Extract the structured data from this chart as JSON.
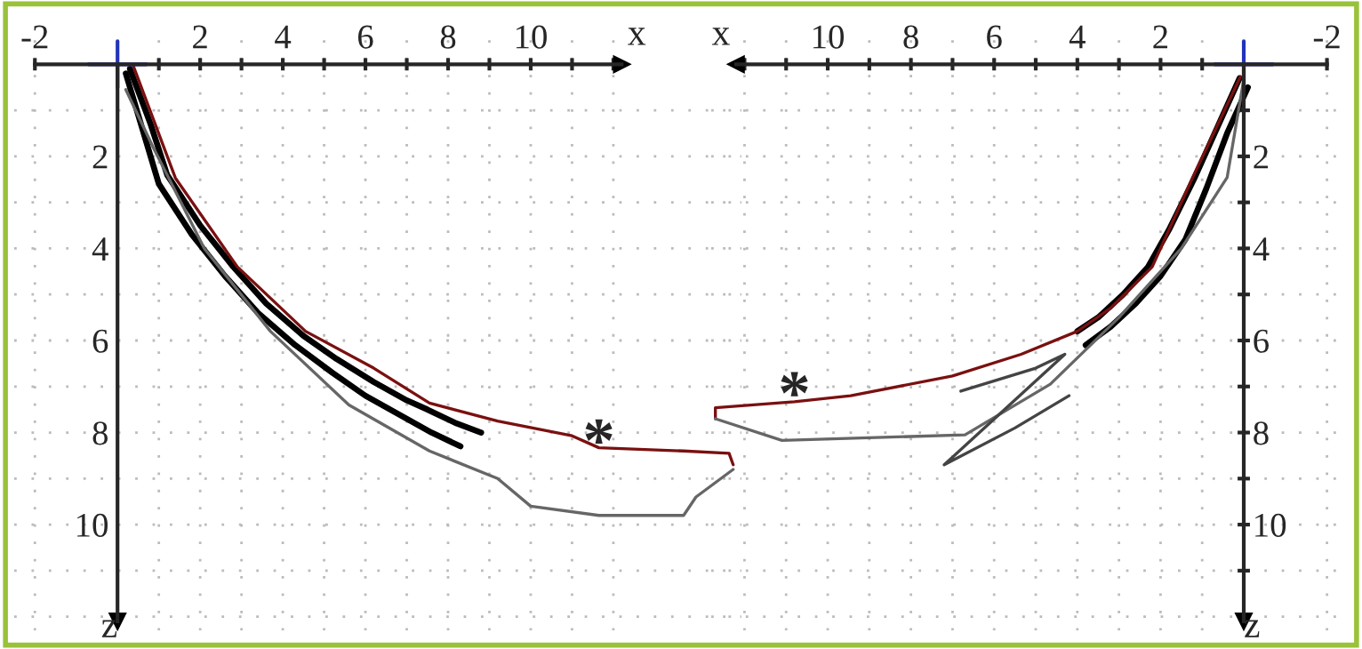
{
  "chart_data": [
    {
      "type": "line",
      "xlabel": "x",
      "ylabel": "z",
      "xlim": [
        -2.5,
        15.1
      ],
      "ylim": [
        12.3,
        -0.6
      ],
      "xticks": [
        -2,
        {
          "value": 1,
          "label": null
        },
        2,
        {
          "value": 3,
          "label": null
        },
        4,
        {
          "value": 5,
          "label": null
        },
        6,
        {
          "value": 7,
          "label": null
        },
        8,
        {
          "value": 9,
          "label": null
        },
        10,
        {
          "value": 11,
          "label": null
        },
        {
          "value": 12,
          "label": null
        }
      ],
      "yticks": [
        {
          "value": 1,
          "label": null
        },
        2,
        {
          "value": 3,
          "label": null
        },
        4,
        {
          "value": 5,
          "label": null
        },
        6,
        {
          "value": 7,
          "label": null
        },
        8,
        {
          "value": 9,
          "label": null
        },
        10,
        {
          "value": 11,
          "label": null
        },
        {
          "value": 12,
          "label": null
        }
      ],
      "grid": true,
      "line_style": "solid",
      "marker": "none",
      "annotations": [
        {
          "text": "*",
          "x": 11.65,
          "y": 8.3
        }
      ],
      "series": [
        {
          "color": "#000000",
          "x": [
            0.3,
            0.8,
            1.2,
            2.0,
            2.8,
            3.6,
            4.5,
            5.3,
            6.2,
            7.0,
            7.5,
            8.2,
            8.8
          ],
          "values": [
            0.1,
            1.3,
            2.4,
            3.5,
            4.4,
            5.2,
            5.9,
            6.4,
            6.9,
            7.3,
            7.5,
            7.8,
            8.0
          ]
        },
        {
          "color": "#000000",
          "x": [
            0.2,
            0.6,
            1.0,
            1.8,
            2.6,
            3.4,
            4.3,
            5.2,
            6.0,
            6.8,
            7.6,
            8.3
          ],
          "values": [
            0.2,
            1.4,
            2.6,
            3.7,
            4.6,
            5.4,
            6.1,
            6.7,
            7.2,
            7.6,
            8.0,
            8.3
          ]
        },
        {
          "color": "#7a1010",
          "x": [
            0.38,
            1.4,
            2.9,
            4.55,
            6.2,
            7.55,
            9.2,
            11.0,
            11.65,
            13.7,
            14.8,
            14.9
          ],
          "values": [
            0.03,
            2.47,
            4.4,
            5.8,
            6.6,
            7.36,
            7.75,
            8.07,
            8.33,
            8.4,
            8.45,
            8.7
          ]
        },
        {
          "color": "#666666",
          "x": [
            14.9,
            14.0,
            13.7,
            11.65,
            10.0,
            9.2,
            7.55,
            5.6,
            3.7,
            2.1,
            0.86,
            0.2
          ],
          "values": [
            8.8,
            9.4,
            9.8,
            9.8,
            9.6,
            9.0,
            8.4,
            7.4,
            5.8,
            4.0,
            1.8,
            0.55
          ]
        }
      ]
    },
    {
      "type": "line",
      "xlabel": "x",
      "ylabel": "z",
      "xlim": [
        12.8,
        -2.5
      ],
      "ylim": [
        12.3,
        -0.6
      ],
      "xticks": [
        -2,
        {
          "value": 1,
          "label": null
        },
        2,
        {
          "value": 3,
          "label": null
        },
        4,
        {
          "value": 5,
          "label": null
        },
        6,
        {
          "value": 7,
          "label": null
        },
        8,
        {
          "value": 9,
          "label": null
        },
        10,
        {
          "value": 11,
          "label": null
        },
        {
          "value": 12,
          "label": null
        }
      ],
      "yticks": [
        {
          "value": 1,
          "label": null
        },
        2,
        {
          "value": 3,
          "label": null
        },
        4,
        {
          "value": 5,
          "label": null
        },
        6,
        {
          "value": 7,
          "label": null
        },
        8,
        {
          "value": 9,
          "label": null
        },
        10,
        {
          "value": 11,
          "label": null
        },
        {
          "value": 12,
          "label": null
        }
      ],
      "grid": true,
      "line_style": "solid",
      "marker": "none",
      "annotations": [
        {
          "text": "*",
          "x": 10.8,
          "y": 7.27
        }
      ],
      "series": [
        {
          "color": "#000000",
          "x": [
            0.1,
            0.6,
            1.2,
            1.8,
            2.3,
            2.9,
            3.5,
            4.0
          ],
          "values": [
            0.3,
            1.3,
            2.5,
            3.6,
            4.4,
            5.0,
            5.5,
            5.8
          ]
        },
        {
          "color": "#000000",
          "x": [
            -0.1,
            0.4,
            0.9,
            1.4,
            2.0,
            2.6,
            3.2,
            3.8
          ],
          "values": [
            0.5,
            1.5,
            2.7,
            3.8,
            4.6,
            5.2,
            5.7,
            6.1
          ]
        },
        {
          "color": "#7a1010",
          "x": [
            0.08,
            1.23,
            2.2,
            3.2,
            4.0,
            5.35,
            7.0,
            9.45,
            10.8,
            12.7,
            12.7
          ],
          "values": [
            0.27,
            2.46,
            4.4,
            5.3,
            5.8,
            6.3,
            6.77,
            7.2,
            7.33,
            7.46,
            7.7
          ]
        },
        {
          "color": "#666666",
          "x": [
            12.7,
            11.1,
            6.7,
            4.65,
            3.0,
            1.5,
            0.4,
            0.0
          ],
          "values": [
            7.7,
            8.17,
            8.05,
            6.95,
            5.5,
            4.0,
            2.46,
            0.33
          ]
        },
        {
          "color": "#444444",
          "x": [
            6.8,
            5.0,
            4.3,
            7.2,
            5.5,
            4.2
          ],
          "values": [
            7.1,
            6.6,
            6.3,
            8.7,
            7.9,
            7.2
          ]
        }
      ]
    }
  ]
}
